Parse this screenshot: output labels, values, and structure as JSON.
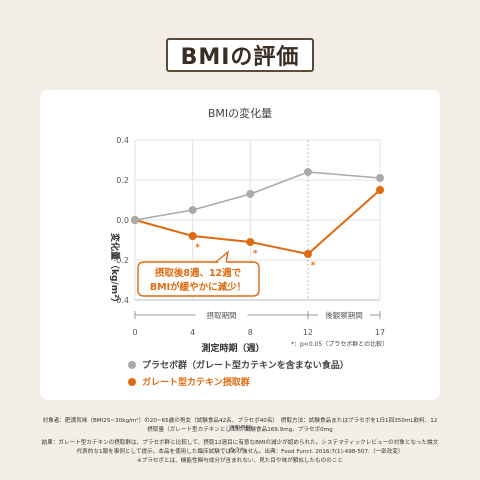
{
  "page_title": "BMIの評価",
  "chart_data": {
    "type": "line",
    "title": "BMIの変化量",
    "ylabel": "変化量（kg/m²）",
    "xlabel": "測定時期（週）",
    "x": [
      0,
      4,
      8,
      12,
      17
    ],
    "xticks": [
      "0",
      "4",
      "8",
      "12",
      "17"
    ],
    "yticks": [
      "0.4",
      "0.2",
      "0.0",
      "-0.2",
      "-0.4"
    ],
    "ylim": [
      -0.4,
      0.4
    ],
    "grid": true,
    "series": [
      {
        "name": "プラセボ群（ガレート型カテキンを含まない食品）",
        "color": "#aaaaaa",
        "values": [
          0.0,
          0.05,
          0.13,
          0.24,
          0.21
        ]
      },
      {
        "name": "ガレート型カテキン摂取群",
        "color": "#e06a10",
        "values": [
          0.0,
          -0.08,
          -0.11,
          -0.17,
          0.15
        ]
      }
    ],
    "significance_marks": [
      "*",
      "*",
      "*"
    ],
    "significance_note": "*：p<0.05（プラセボ群との比較）",
    "period_intake": "摂取期間",
    "period_post": "後観察期間",
    "callout_line1": "摂取後8週、12週で",
    "callout_line2": "BMIが緩やかに減少！"
  },
  "footnotes": [
    "対象者：肥満気味（BMI25~30kg/m²）の20~65歳の男女（試験食品42名、プラセボ40名）　摂取方法：試験食品またはプラセボを1日1回350mL飲料、12週間摂取",
    "摂取量（ガレート型カテキンとして）：試験食品169.9mg、プラセボ0mg",
    "結果：ガレート型カテキンの摂取群は、プラセボ群と比較して、摂取12週目に有意なBMIの減少が認められた。システマティックレビューの対象となった論文のうち、",
    "代表的な1報を事例として提示。本品を使用した臨床試験ではありません。出典：Food Funct. 2016;7(1):498-507.（一部改変）",
    "※プラセボとは、機能性関与成分が含まれない、見た目や味が類似したもののこと"
  ]
}
